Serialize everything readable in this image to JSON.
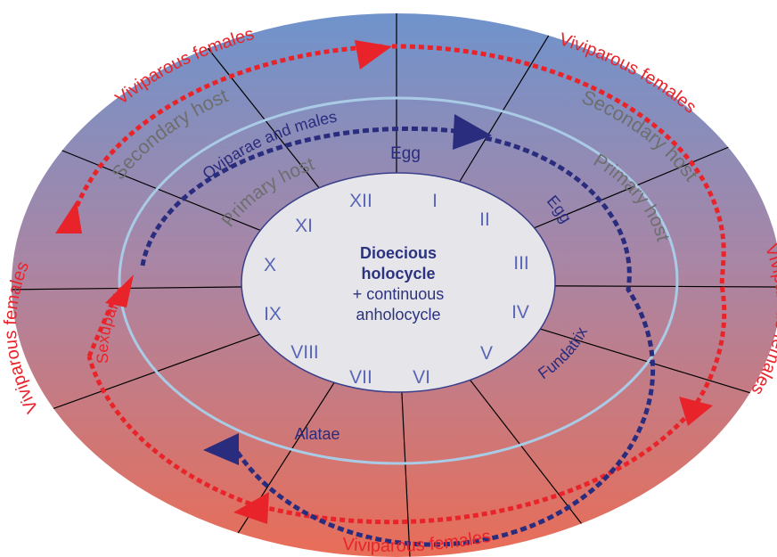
{
  "center": {
    "line1": "Dioecious",
    "line2": "holocycle",
    "line3": "+ continuous",
    "line4": "anholocycle"
  },
  "months": [
    "I",
    "II",
    "III",
    "IV",
    "V",
    "VI",
    "VII",
    "VIII",
    "IX",
    "X",
    "XI",
    "XII"
  ],
  "labels": {
    "egg_top": "Egg",
    "egg_right": "Egg",
    "oviparae": "Oviparae and males",
    "primary_host_left": "Primary host",
    "primary_host_right": "Primary host",
    "secondary_host_left": "Secondary host",
    "secondary_host_right": "Secondary host",
    "fundatrix": "Fundatrix",
    "alatae": "Alatae",
    "sexuparae": "Sexuparae",
    "viviparous_top_left": "Viviparous females",
    "viviparous_top_right": "Viviparous females",
    "viviparous_left": "Viviparous females",
    "viviparous_right": "Viviparous females",
    "viviparous_bottom": "Viviparous females"
  },
  "colors": {
    "outer_gradient_top": "#6f8fc6",
    "outer_gradient_bottom": "#e4705f",
    "inner_ring": "#9dc3e0",
    "center_fill": "#e4e4e8",
    "center_stroke": "#3a3f8a",
    "month_text": "#5a66b5",
    "center_title": "#2b3380",
    "host_text": "#707070",
    "viviparous_red": "#e8242a",
    "dark_blue": "#2a2c7e"
  }
}
